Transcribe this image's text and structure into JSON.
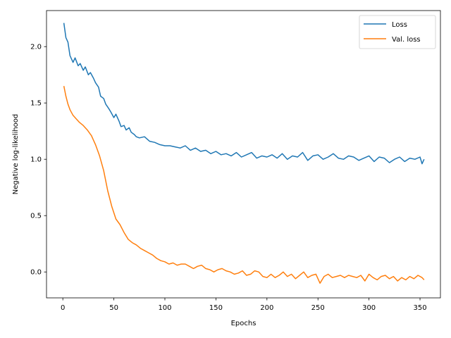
{
  "chart_data": {
    "type": "line",
    "title": "",
    "xlabel": "Epochs",
    "ylabel": "Negative log-likelihood",
    "xlim": [
      -16,
      370
    ],
    "ylim": [
      -0.23,
      2.32
    ],
    "xticks": [
      0,
      50,
      100,
      150,
      200,
      250,
      300,
      350
    ],
    "yticks": [
      0.0,
      0.5,
      1.0,
      1.5,
      2.0
    ],
    "xtick_labels": [
      "0",
      "50",
      "100",
      "150",
      "200",
      "250",
      "300",
      "350"
    ],
    "ytick_labels": [
      "0.0",
      "0.5",
      "1.0",
      "1.5",
      "2.0"
    ],
    "grid": false,
    "legend_position": "top-right",
    "series": [
      {
        "name": "Loss",
        "color": "#1f77b4",
        "x": [
          1,
          3,
          5,
          7,
          10,
          12,
          15,
          17,
          20,
          22,
          25,
          27,
          30,
          32,
          35,
          37,
          40,
          42,
          45,
          47,
          50,
          52,
          55,
          57,
          60,
          62,
          65,
          67,
          70,
          72,
          75,
          80,
          85,
          90,
          95,
          100,
          105,
          110,
          115,
          120,
          125,
          130,
          135,
          140,
          145,
          150,
          155,
          160,
          165,
          170,
          175,
          180,
          185,
          190,
          195,
          200,
          205,
          210,
          215,
          220,
          225,
          230,
          235,
          240,
          245,
          250,
          255,
          260,
          265,
          270,
          275,
          280,
          285,
          290,
          295,
          300,
          305,
          310,
          315,
          320,
          325,
          330,
          335,
          340,
          345,
          350,
          352,
          354
        ],
        "values": [
          2.21,
          2.08,
          2.04,
          1.92,
          1.86,
          1.9,
          1.83,
          1.85,
          1.79,
          1.82,
          1.75,
          1.77,
          1.72,
          1.68,
          1.64,
          1.56,
          1.54,
          1.49,
          1.45,
          1.42,
          1.37,
          1.4,
          1.34,
          1.29,
          1.3,
          1.26,
          1.28,
          1.24,
          1.22,
          1.2,
          1.19,
          1.2,
          1.16,
          1.15,
          1.13,
          1.12,
          1.12,
          1.11,
          1.1,
          1.12,
          1.08,
          1.1,
          1.07,
          1.08,
          1.05,
          1.07,
          1.04,
          1.05,
          1.03,
          1.06,
          1.02,
          1.04,
          1.06,
          1.01,
          1.03,
          1.02,
          1.04,
          1.01,
          1.05,
          1.0,
          1.03,
          1.02,
          1.06,
          0.99,
          1.03,
          1.04,
          1.0,
          1.02,
          1.05,
          1.01,
          1.0,
          1.03,
          1.02,
          0.99,
          1.01,
          1.03,
          0.98,
          1.02,
          1.01,
          0.97,
          1.0,
          1.02,
          0.98,
          1.01,
          1.0,
          1.02,
          0.96,
          1.0
        ]
      },
      {
        "name": "Val. loss",
        "color": "#ff7f0e",
        "x": [
          1,
          3,
          5,
          7,
          10,
          13,
          16,
          20,
          24,
          28,
          32,
          36,
          40,
          44,
          48,
          52,
          56,
          60,
          64,
          68,
          72,
          76,
          80,
          84,
          88,
          92,
          96,
          100,
          104,
          108,
          112,
          116,
          120,
          124,
          128,
          132,
          136,
          140,
          144,
          148,
          152,
          156,
          160,
          164,
          168,
          172,
          176,
          180,
          184,
          188,
          192,
          196,
          200,
          204,
          208,
          212,
          216,
          220,
          224,
          228,
          232,
          236,
          240,
          244,
          248,
          252,
          256,
          260,
          264,
          268,
          272,
          276,
          280,
          284,
          288,
          292,
          296,
          300,
          304,
          308,
          312,
          316,
          320,
          324,
          328,
          332,
          336,
          340,
          344,
          348,
          352,
          354
        ],
        "values": [
          1.65,
          1.56,
          1.49,
          1.44,
          1.39,
          1.36,
          1.33,
          1.3,
          1.26,
          1.21,
          1.13,
          1.03,
          0.9,
          0.72,
          0.58,
          0.47,
          0.42,
          0.35,
          0.29,
          0.26,
          0.24,
          0.21,
          0.19,
          0.17,
          0.15,
          0.12,
          0.1,
          0.09,
          0.07,
          0.08,
          0.06,
          0.07,
          0.07,
          0.05,
          0.03,
          0.05,
          0.06,
          0.03,
          0.02,
          0.0,
          0.02,
          0.03,
          0.01,
          0.0,
          -0.02,
          -0.01,
          0.01,
          -0.03,
          -0.02,
          0.01,
          0.0,
          -0.04,
          -0.05,
          -0.02,
          -0.05,
          -0.03,
          0.0,
          -0.04,
          -0.02,
          -0.06,
          -0.03,
          0.0,
          -0.05,
          -0.03,
          -0.02,
          -0.1,
          -0.04,
          -0.02,
          -0.05,
          -0.04,
          -0.03,
          -0.05,
          -0.03,
          -0.04,
          -0.05,
          -0.03,
          -0.08,
          -0.02,
          -0.05,
          -0.07,
          -0.04,
          -0.03,
          -0.06,
          -0.04,
          -0.08,
          -0.05,
          -0.07,
          -0.04,
          -0.06,
          -0.03,
          -0.05,
          -0.07
        ]
      }
    ]
  }
}
